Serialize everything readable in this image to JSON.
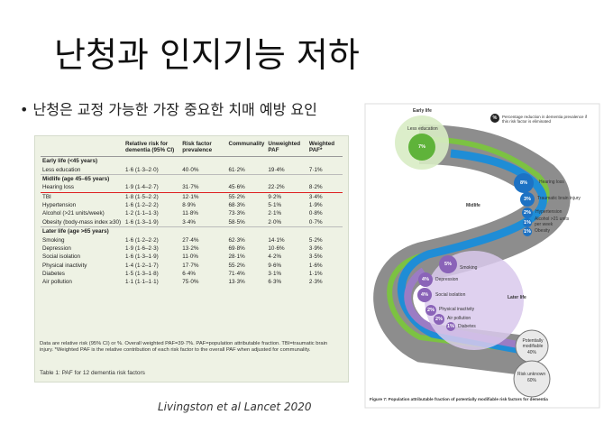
{
  "title": "난청과 인지기능 저하",
  "bullet": "난청은 교정 가능한 가장 중요한 치매 예방 요인",
  "citation": "Livingston et al Lancet 2020",
  "table": {
    "columns": [
      "Relative risk for dementia (95% CI)",
      "Risk factor prevalence",
      "Communality",
      "Unweighted PAF",
      "Weighted PAF*"
    ],
    "sections": [
      {
        "label": "Early life (<45 years)",
        "rows": [
          [
            "Less education",
            "1·6 (1·3–2·0)",
            "40·0%",
            "61·2%",
            "19·4%",
            "7·1%"
          ]
        ]
      },
      {
        "label": "Midlife (age 45–65 years)",
        "rows": [
          [
            "Hearing loss",
            "1·9 (1·4–2·7)",
            "31·7%",
            "45·6%",
            "22·2%",
            "8·2%"
          ],
          [
            "TBI",
            "1·8 (1·5–2·2)",
            "12·1%",
            "55·2%",
            "9·2%",
            "3·4%"
          ],
          [
            "Hypertension",
            "1·6 (1·2–2·2)",
            "8·9%",
            "68·3%",
            "5·1%",
            "1·9%"
          ],
          [
            "Alcohol (>21 units/week)",
            "1·2 (1·1–1·3)",
            "11·8%",
            "73·3%",
            "2·1%",
            "0·8%"
          ],
          [
            "Obesity (body-mass index ≥30)",
            "1·6 (1·3–1·9)",
            "3·4%",
            "58·5%",
            "2·0%",
            "0·7%"
          ]
        ]
      },
      {
        "label": "Later life (age >65 years)",
        "rows": [
          [
            "Smoking",
            "1·6 (1·2–2·2)",
            "27·4%",
            "62·3%",
            "14·1%",
            "5·2%"
          ],
          [
            "Depression",
            "1·9 (1·6–2·3)",
            "13·2%",
            "69·8%",
            "10·6%",
            "3·9%"
          ],
          [
            "Social isolation",
            "1·6 (1·3–1·9)",
            "11·0%",
            "28·1%",
            "4·2%",
            "3·5%"
          ],
          [
            "Physical inactivity",
            "1·4 (1·2–1·7)",
            "17·7%",
            "55·2%",
            "9·6%",
            "1·6%"
          ],
          [
            "Diabetes",
            "1·5 (1·3–1·8)",
            "6·4%",
            "71·4%",
            "3·1%",
            "1·1%"
          ],
          [
            "Air pollution",
            "1·1 (1·1–1·1)",
            "75·0%",
            "13·3%",
            "6·3%",
            "2·3%"
          ]
        ]
      }
    ],
    "footnote": "Data are relative risk (95% CI) or %. Overall weighted PAF=39·7%. PAF=population attributable fraction. TBI=traumatic brain injury. *Weighted PAF is the relative contribution of each risk factor to the overall PAF when adjusted for communality.",
    "caption": "Table 1: PAF for 12 dementia risk factors"
  },
  "figure": {
    "legend_symbol": "%",
    "legend_text": "Percentage reduction in dementia prevalence if this risk factor is eliminated",
    "groups": [
      {
        "label": "Early life",
        "factors": [
          {
            "label": "Less education",
            "value": "7%"
          }
        ]
      },
      {
        "label": "Midlife",
        "factors": [
          {
            "label": "Hearing loss",
            "value": "8%"
          },
          {
            "label": "Traumatic brain injury",
            "value": "3%"
          },
          {
            "label": "Hypertension",
            "value": "2%"
          },
          {
            "label": "Alcohol >21 units per week",
            "value": "1%"
          },
          {
            "label": "Obesity",
            "value": "1%"
          }
        ]
      },
      {
        "label": "Later life",
        "factors": [
          {
            "label": "Smoking",
            "value": "5%"
          },
          {
            "label": "Depression",
            "value": "4%"
          },
          {
            "label": "Social isolation",
            "value": "4%"
          },
          {
            "label": "Physical inactivity",
            "value": "2%"
          },
          {
            "label": "Air pollution",
            "value": "2%"
          },
          {
            "label": "Diabetes",
            "value": "1%"
          }
        ]
      }
    ],
    "potentially_modifiable": {
      "label": "Potentially modifiable",
      "value": "40%"
    },
    "risk_unknown": {
      "label": "Risk unknown",
      "value": "60%"
    },
    "caption": "Figure 7: Population attributable fraction of potentially modifiable risk factors for dementia"
  }
}
